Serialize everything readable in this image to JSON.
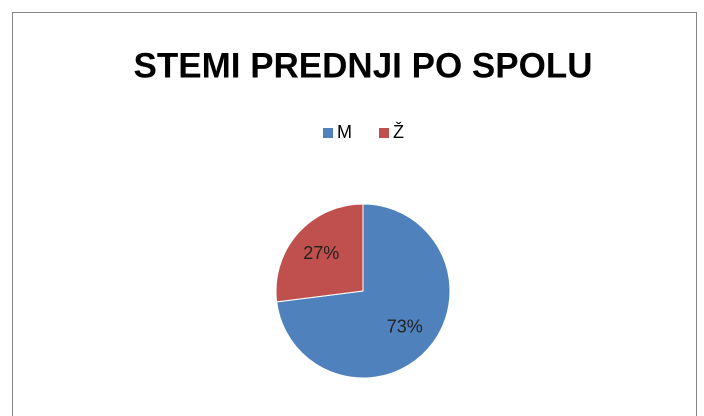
{
  "chart_data": {
    "type": "pie",
    "title": "STEMI PREDNJI PO SPOLU",
    "categories": [
      "M",
      "Ž"
    ],
    "values": [
      73,
      27
    ],
    "value_labels": [
      "73%",
      "27%"
    ],
    "colors": [
      "#4f81bd",
      "#c0504d"
    ],
    "legend": "top"
  }
}
